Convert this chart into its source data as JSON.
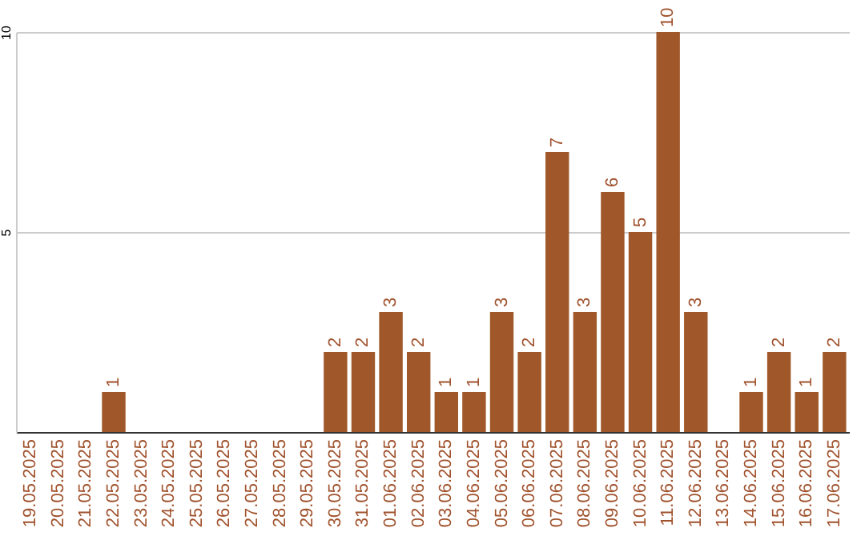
{
  "chart_data": {
    "type": "bar",
    "categories": [
      "19.05.2025",
      "20.05.2025",
      "21.05.2025",
      "22.05.2025",
      "23.05.2025",
      "24.05.2025",
      "25.05.2025",
      "26.05.2025",
      "27.05.2025",
      "28.05.2025",
      "29.05.2025",
      "30.05.2025",
      "31.05.2025",
      "01.06.2025",
      "02.06.2025",
      "03.06.2025",
      "04.06.2025",
      "05.06.2025",
      "06.06.2025",
      "07.06.2025",
      "08.06.2025",
      "09.06.2025",
      "10.06.2025",
      "11.06.2025",
      "12.06.2025",
      "13.06.2025",
      "14.06.2025",
      "15.06.2025",
      "16.06.2025",
      "17.06.2025"
    ],
    "values": [
      0,
      0,
      0,
      1,
      0,
      0,
      0,
      0,
      0,
      0,
      0,
      2,
      2,
      3,
      2,
      1,
      1,
      3,
      2,
      7,
      3,
      6,
      5,
      10,
      3,
      0,
      1,
      2,
      1,
      2
    ],
    "value_labels": [
      null,
      null,
      null,
      "1",
      null,
      null,
      null,
      null,
      null,
      null,
      null,
      "2",
      "2",
      "3",
      "2",
      "1",
      "1",
      "3",
      "2",
      "7",
      "3",
      "6",
      "5",
      "10",
      "3",
      null,
      "1",
      "2",
      "1",
      "2"
    ],
    "color": "#a0582a",
    "ylim": [
      0,
      10
    ],
    "yticks": [
      5,
      10
    ],
    "grid": "y"
  }
}
